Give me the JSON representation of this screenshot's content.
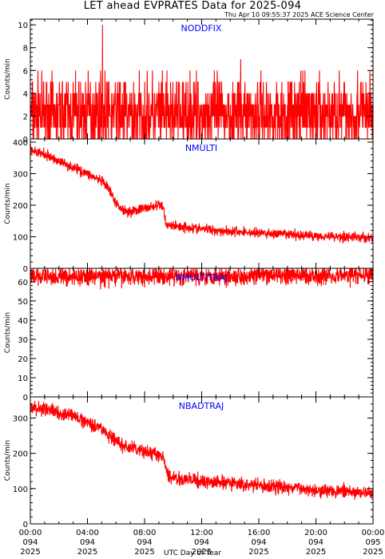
{
  "header": {
    "title": "LET ahead EVPRATES Data for 2025-094",
    "timestamp": "Thu Apr 10 09:55:37 2025 ACE Science Center"
  },
  "colors": {
    "series": "#ff0000",
    "panel_title": "#0000ff",
    "axes": "#000000"
  },
  "chart_data": [
    {
      "type": "line",
      "title": "NODDFIX",
      "ylabel": "Counts/min",
      "ylim": [
        0,
        10.5
      ],
      "yticks": [
        0,
        2,
        4,
        6,
        8,
        10
      ],
      "xlim": [
        0,
        24
      ],
      "model": {
        "kind": "discrete",
        "base": 2.2,
        "levels": [
          0,
          1,
          2,
          3,
          4,
          5,
          6,
          7
        ],
        "spike": {
          "x": 5.05,
          "y": 10
        }
      },
      "series": [
        {
          "x": [
            0,
            24
          ],
          "y": [
            0,
            7
          ]
        }
      ]
    },
    {
      "type": "line",
      "title": "NMULTI",
      "ylabel": "Counts/min",
      "ylim": [
        0,
        410
      ],
      "yticks": [
        0,
        100,
        200,
        300,
        400
      ],
      "xlim": [
        0,
        24
      ],
      "series": [
        {
          "x": [
            0,
            1,
            2,
            3,
            4,
            5,
            5.5,
            6,
            6.5,
            7,
            7.5,
            8,
            8.5,
            9,
            9.3,
            9.5,
            10,
            12,
            14,
            16,
            18,
            20,
            22,
            24
          ],
          "y": [
            375,
            360,
            340,
            320,
            300,
            275,
            250,
            205,
            185,
            180,
            185,
            190,
            195,
            200,
            195,
            140,
            135,
            125,
            117,
            112,
            107,
            103,
            100,
            97
          ],
          "noise": 10
        }
      ]
    },
    {
      "type": "line",
      "title": "NMULTITRAJ",
      "ylabel": "Counts/min",
      "ylim": [
        0,
        67
      ],
      "yticks": [
        0,
        10,
        20,
        30,
        40,
        50,
        60
      ],
      "xlim": [
        0,
        24
      ],
      "series": [
        {
          "x": [
            0,
            24
          ],
          "y": [
            62.5,
            63.5
          ],
          "noise": 3
        }
      ]
    },
    {
      "type": "line",
      "title": "NBADTRAJ",
      "ylabel": "Counts/min",
      "ylim": [
        0,
        360
      ],
      "yticks": [
        0,
        100,
        200,
        300
      ],
      "xlim": [
        0,
        24
      ],
      "series": [
        {
          "x": [
            0,
            1,
            2,
            3,
            4,
            5,
            5.5,
            6,
            6.5,
            7,
            7.5,
            8,
            8.5,
            9,
            9.3,
            9.6,
            10,
            12,
            14,
            16,
            18,
            20,
            22,
            24
          ],
          "y": [
            330,
            325,
            315,
            305,
            290,
            270,
            250,
            235,
            220,
            215,
            210,
            205,
            200,
            195,
            185,
            140,
            130,
            120,
            115,
            108,
            103,
            97,
            92,
            85
          ],
          "noise": 12
        }
      ]
    }
  ],
  "x_axis": {
    "label": "UTC Day of Year",
    "ticks": [
      {
        "x": 0,
        "time": "00:00",
        "doy": "094",
        "year": "2025"
      },
      {
        "x": 4,
        "time": "04:00",
        "doy": "094",
        "year": "2025"
      },
      {
        "x": 8,
        "time": "08:00",
        "doy": "094",
        "year": "2025"
      },
      {
        "x": 12,
        "time": "12:00",
        "doy": "094",
        "year": "2025"
      },
      {
        "x": 16,
        "time": "16:00",
        "doy": "094",
        "year": "2025"
      },
      {
        "x": 20,
        "time": "20:00",
        "doy": "094",
        "year": "2025"
      },
      {
        "x": 24,
        "time": "00:00",
        "doy": "095",
        "year": "2025"
      }
    ]
  }
}
